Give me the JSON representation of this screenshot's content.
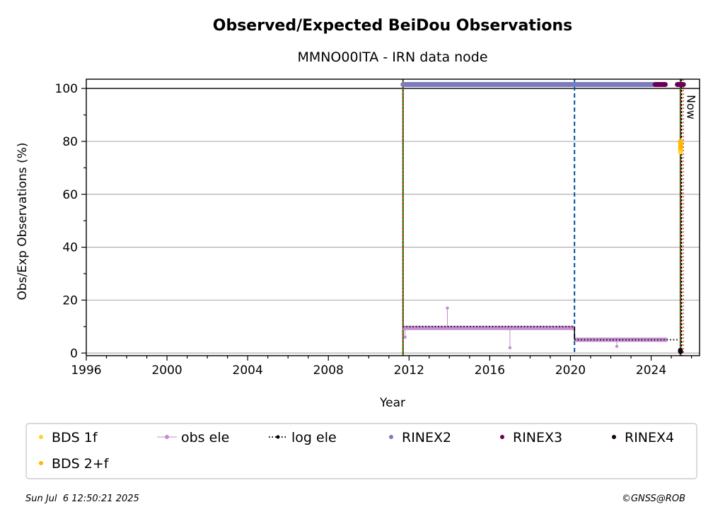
{
  "chart_data": {
    "type": "scatter",
    "title": "Observed/Expected BeiDou Observations",
    "subtitle": "MMNO00ITA - IRN data node",
    "xlabel": "Year",
    "ylabel": "Obs/Exp Observations (%)",
    "xlim": [
      1996,
      2026.4
    ],
    "ylim": [
      -1,
      103.5
    ],
    "xticks": [
      "1996",
      "2000",
      "2004",
      "2008",
      "2012",
      "2016",
      "2020",
      "2024"
    ],
    "yticks": [
      "0",
      "20",
      "40",
      "60",
      "80",
      "100"
    ],
    "grid": "horizontal",
    "now_label": "Now",
    "now_year": 2025.51,
    "reference_line_y": 100,
    "vertical_markers": [
      {
        "x": 2011.7,
        "style": "solid",
        "color": "#008000"
      },
      {
        "x": 2011.7,
        "style": "dotted",
        "color": "#e00000"
      },
      {
        "x": 2020.2,
        "style": "dashed",
        "color": "#0050a0"
      },
      {
        "x": 2025.45,
        "style": "solid",
        "color": "#008000"
      },
      {
        "x": 2025.45,
        "style": "dotted",
        "color": "#e00000"
      }
    ],
    "series": [
      {
        "name": "BDS 1f",
        "kind": "points",
        "color": "#ffd030",
        "points": [
          [
            2025.45,
            78
          ],
          [
            2025.46,
            77
          ],
          [
            2025.47,
            79
          ],
          [
            2025.45,
            76
          ]
        ]
      },
      {
        "name": "obs ele",
        "kind": "stem-line",
        "color": "#c58cd0",
        "segments": [
          [
            2011.7,
            2020.2,
            9.5
          ],
          [
            2020.2,
            2024.8,
            5.0
          ]
        ],
        "outliers": [
          [
            2011.8,
            6
          ],
          [
            2013.9,
            17
          ],
          [
            2017.0,
            2
          ],
          [
            2022.3,
            2.5
          ]
        ]
      },
      {
        "name": "log ele",
        "kind": "dotted-line",
        "color": "#000000",
        "segments": [
          [
            2011.7,
            2020.2,
            10
          ],
          [
            2020.2,
            2025.4,
            5
          ]
        ]
      },
      {
        "name": "RINEX2",
        "kind": "band",
        "color": "#7b7bbd",
        "y": 101.5,
        "x0": 2011.7,
        "x1": 2024.1
      },
      {
        "name": "RINEX3",
        "kind": "band",
        "color": "#6a0055",
        "y": 101.5,
        "segments": [
          [
            2024.2,
            2024.7
          ],
          [
            2025.3,
            2025.6
          ]
        ]
      },
      {
        "name": "RINEX4",
        "kind": "points",
        "color": "#1a0010",
        "points": [
          [
            2025.45,
            1
          ],
          [
            2025.46,
            0.5
          ]
        ]
      },
      {
        "name": "BDS 2+f",
        "kind": "points",
        "color": "#ffb800",
        "points": [
          [
            2025.45,
            80
          ],
          [
            2025.46,
            79.5
          ],
          [
            2025.47,
            78.5
          ],
          [
            2025.46,
            77.5
          ]
        ]
      }
    ]
  },
  "legend": {
    "items": [
      {
        "label": "BDS 1f",
        "marker": "dot",
        "color": "#ffd030"
      },
      {
        "label": "obs ele",
        "marker": "stem",
        "color": "#c58cd0"
      },
      {
        "label": "log ele",
        "marker": "dotline",
        "color": "#000000"
      },
      {
        "label": "RINEX2",
        "marker": "dot",
        "color": "#7b7bbd"
      },
      {
        "label": "RINEX3",
        "marker": "dot",
        "color": "#6a0055"
      },
      {
        "label": "RINEX4",
        "marker": "dot",
        "color": "#1a0010"
      },
      {
        "label": "BDS 2+f",
        "marker": "dot",
        "color": "#ffb800"
      }
    ]
  },
  "footer": {
    "timestamp": "Sun Jul  6 12:50:21 2025",
    "copyright": "©GNSS@ROB"
  }
}
